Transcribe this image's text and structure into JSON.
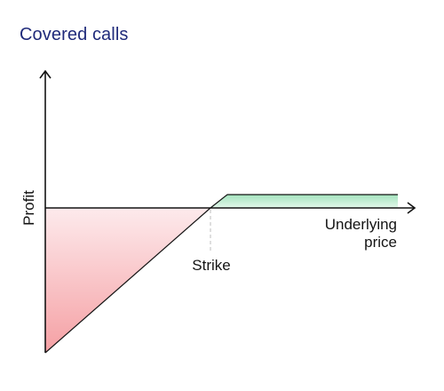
{
  "title": "Covered calls",
  "labels": {
    "y_axis": "Profit",
    "x_axis_line1": "Underlying",
    "x_axis_line2": "price",
    "strike": "Strike"
  },
  "colors": {
    "title": "#1f2a7a",
    "axis": "#141414",
    "loss_fill_top": "#fde4e6",
    "loss_fill_bottom": "#f6a3a6",
    "profit_fill": "#a9e6c2",
    "profit_fill_light": "#d9f4e3",
    "guide": "#c8c8c8"
  },
  "icons": {
    "axis_arrows": "arrow-head"
  }
}
